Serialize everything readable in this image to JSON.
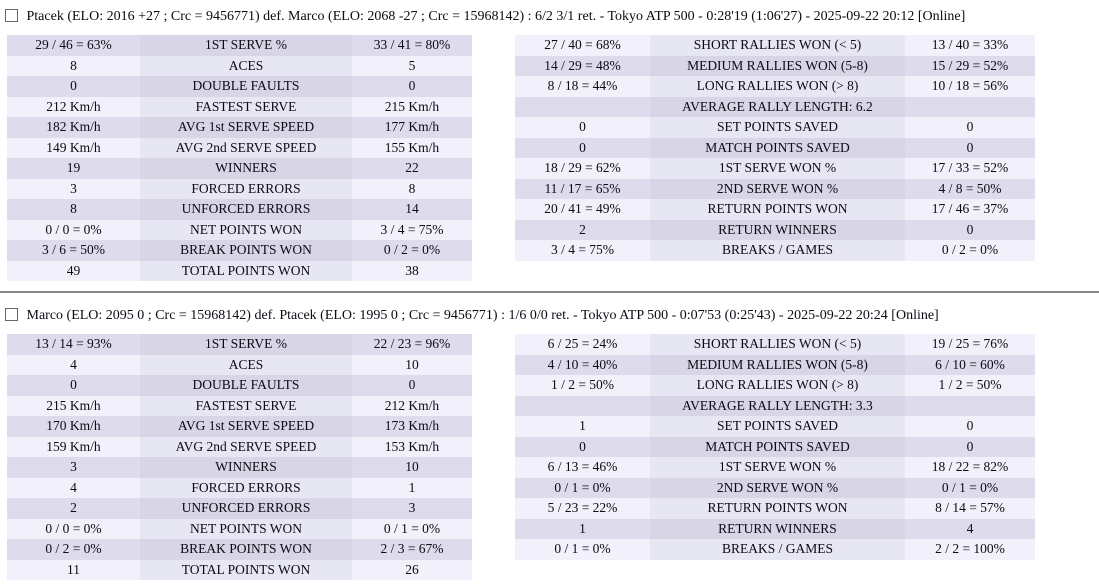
{
  "colors": {
    "row-light-outer": "#f1f0fb",
    "row-light-mid": "#e7e6f3",
    "row-dark-outer": "#dedcec",
    "row-dark-mid": "#d7d5e6",
    "text": "#0b0b14",
    "rule": "#8a8a8a"
  },
  "matches": [
    {
      "title": "Ptacek (ELO: 2016 +27 ; Crc = 9456771) def. Marco (ELO: 2068 -27 ; Crc = 15968142) : 6/2 3/1 ret. - Tokyo ATP 500 - 0:28'19 (1:06'27) - 2025-09-22 20:12 [Online]",
      "serve": {
        "rows": [
          {
            "p1": "29 / 46 = 63%",
            "label": "1ST SERVE %",
            "p2": "33 / 41 = 80%"
          },
          {
            "p1": "8",
            "label": "ACES",
            "p2": "5"
          },
          {
            "p1": "0",
            "label": "DOUBLE FAULTS",
            "p2": "0"
          },
          {
            "p1": "212 Km/h",
            "label": "FASTEST SERVE",
            "p2": "215 Km/h"
          },
          {
            "p1": "182 Km/h",
            "label": "AVG 1st SERVE SPEED",
            "p2": "177 Km/h"
          },
          {
            "p1": "149 Km/h",
            "label": "AVG 2nd SERVE SPEED",
            "p2": "155 Km/h"
          },
          {
            "p1": "19",
            "label": "WINNERS",
            "p2": "22"
          },
          {
            "p1": "3",
            "label": "FORCED ERRORS",
            "p2": "8"
          },
          {
            "p1": "8",
            "label": "UNFORCED ERRORS",
            "p2": "14"
          },
          {
            "p1": "0 / 0 = 0%",
            "label": "NET POINTS WON",
            "p2": "3 / 4 = 75%"
          },
          {
            "p1": "3 / 6 = 50%",
            "label": "BREAK POINTS WON",
            "p2": "0 / 2 = 0%"
          },
          {
            "p1": "49",
            "label": "TOTAL POINTS WON",
            "p2": "38"
          }
        ]
      },
      "rally": {
        "rows": [
          {
            "p1": "27 / 40 = 68%",
            "label": "SHORT RALLIES WON (< 5)",
            "p2": "13 / 40 = 33%"
          },
          {
            "p1": "14 / 29 = 48%",
            "label": "MEDIUM RALLIES WON (5-8)",
            "p2": "15 / 29 = 52%"
          },
          {
            "p1": "8 / 18 = 44%",
            "label": "LONG RALLIES WON (> 8)",
            "p2": "10 / 18 = 56%"
          },
          {
            "p1": "",
            "label": "AVERAGE RALLY LENGTH: 6.2",
            "p2": ""
          },
          {
            "p1": "0",
            "label": "SET POINTS SAVED",
            "p2": "0"
          },
          {
            "p1": "0",
            "label": "MATCH POINTS SAVED",
            "p2": "0"
          },
          {
            "p1": "18 / 29 = 62%",
            "label": "1ST SERVE WON %",
            "p2": "17 / 33 = 52%"
          },
          {
            "p1": "11 / 17 = 65%",
            "label": "2ND SERVE WON %",
            "p2": "4 / 8 = 50%"
          },
          {
            "p1": "20 / 41 = 49%",
            "label": "RETURN POINTS WON",
            "p2": "17 / 46 = 37%"
          },
          {
            "p1": "2",
            "label": "RETURN WINNERS",
            "p2": "0"
          },
          {
            "p1": "3 / 4 = 75%",
            "label": "BREAKS / GAMES",
            "p2": "0 / 2 = 0%"
          }
        ]
      }
    },
    {
      "title": "Marco (ELO: 2095 0 ; Crc = 15968142) def. Ptacek (ELO: 1995 0 ; Crc = 9456771) : 1/6 0/0 ret. - Tokyo ATP 500 - 0:07'53 (0:25'43) - 2025-09-22 20:24 [Online]",
      "serve": {
        "rows": [
          {
            "p1": "13 / 14 = 93%",
            "label": "1ST SERVE %",
            "p2": "22 / 23 = 96%"
          },
          {
            "p1": "4",
            "label": "ACES",
            "p2": "10"
          },
          {
            "p1": "0",
            "label": "DOUBLE FAULTS",
            "p2": "0"
          },
          {
            "p1": "215 Km/h",
            "label": "FASTEST SERVE",
            "p2": "212 Km/h"
          },
          {
            "p1": "170 Km/h",
            "label": "AVG 1st SERVE SPEED",
            "p2": "173 Km/h"
          },
          {
            "p1": "159 Km/h",
            "label": "AVG 2nd SERVE SPEED",
            "p2": "153 Km/h"
          },
          {
            "p1": "3",
            "label": "WINNERS",
            "p2": "10"
          },
          {
            "p1": "4",
            "label": "FORCED ERRORS",
            "p2": "1"
          },
          {
            "p1": "2",
            "label": "UNFORCED ERRORS",
            "p2": "3"
          },
          {
            "p1": "0 / 0 = 0%",
            "label": "NET POINTS WON",
            "p2": "0 / 1 = 0%"
          },
          {
            "p1": "0 / 2 = 0%",
            "label": "BREAK POINTS WON",
            "p2": "2 / 3 = 67%"
          },
          {
            "p1": "11",
            "label": "TOTAL POINTS WON",
            "p2": "26"
          }
        ]
      },
      "rally": {
        "rows": [
          {
            "p1": "6 / 25 = 24%",
            "label": "SHORT RALLIES WON (< 5)",
            "p2": "19 / 25 = 76%"
          },
          {
            "p1": "4 / 10 = 40%",
            "label": "MEDIUM RALLIES WON (5-8)",
            "p2": "6 / 10 = 60%"
          },
          {
            "p1": "1 / 2 = 50%",
            "label": "LONG RALLIES WON (> 8)",
            "p2": "1 / 2 = 50%"
          },
          {
            "p1": "",
            "label": "AVERAGE RALLY LENGTH: 3.3",
            "p2": ""
          },
          {
            "p1": "1",
            "label": "SET POINTS SAVED",
            "p2": "0"
          },
          {
            "p1": "0",
            "label": "MATCH POINTS SAVED",
            "p2": "0"
          },
          {
            "p1": "6 / 13 = 46%",
            "label": "1ST SERVE WON %",
            "p2": "18 / 22 = 82%"
          },
          {
            "p1": "0 / 1 = 0%",
            "label": "2ND SERVE WON %",
            "p2": "0 / 1 = 0%"
          },
          {
            "p1": "5 / 23 = 22%",
            "label": "RETURN POINTS WON",
            "p2": "8 / 14 = 57%"
          },
          {
            "p1": "1",
            "label": "RETURN WINNERS",
            "p2": "4"
          },
          {
            "p1": "0 / 1 = 0%",
            "label": "BREAKS / GAMES",
            "p2": "2 / 2 = 100%"
          }
        ]
      }
    }
  ]
}
